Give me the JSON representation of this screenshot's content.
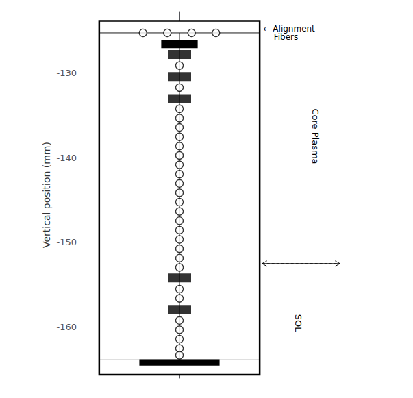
{
  "chart_data": {
    "type": "scatter",
    "ylabel": "Vertical position (mm)",
    "ylim": [
      -166.0,
      -122.8
    ],
    "yticks": [
      -130,
      -140,
      -150,
      -160
    ],
    "tick_labels": "y",
    "grid": false,
    "frame_ylim": [
      -165.6,
      -123.9
    ],
    "inner_lines": [
      -125.3,
      -163.85
    ],
    "blocks": [
      {
        "y": -126.65,
        "height": 0.9,
        "color": "black"
      },
      {
        "y": -164.15,
        "height": 0.75,
        "color": "black"
      }
    ],
    "alignment_fibers": [
      -125.3,
      -125.3,
      -125.3,
      -125.3
    ],
    "series": [
      {
        "marker": "square",
        "color": "black",
        "values": [
          -127.85,
          -130.45,
          -133.05,
          -154.2,
          -157.9
        ]
      },
      {
        "marker": "circle",
        "color": "white",
        "values": [
          -129.15,
          -131.75,
          -134.25,
          -135.35,
          -136.45,
          -137.55,
          -138.65,
          -139.75,
          -140.85,
          -141.95,
          -143.05,
          -144.15,
          -145.25,
          -146.35,
          -147.45,
          -148.55,
          -149.65,
          -150.75,
          -151.85,
          -152.95,
          -155.5,
          -156.6,
          -159.2,
          -160.3,
          -161.4,
          -162.5,
          -163.3
        ]
      }
    ],
    "annotations": [
      {
        "text": "← Alignment\n    Fibers",
        "y": -125.3
      }
    ],
    "regions": [
      {
        "text": "Core Plasma",
        "y": -137.5
      },
      {
        "text": "SOL",
        "y": -159.5
      }
    ],
    "boundary_y": -152.5
  }
}
